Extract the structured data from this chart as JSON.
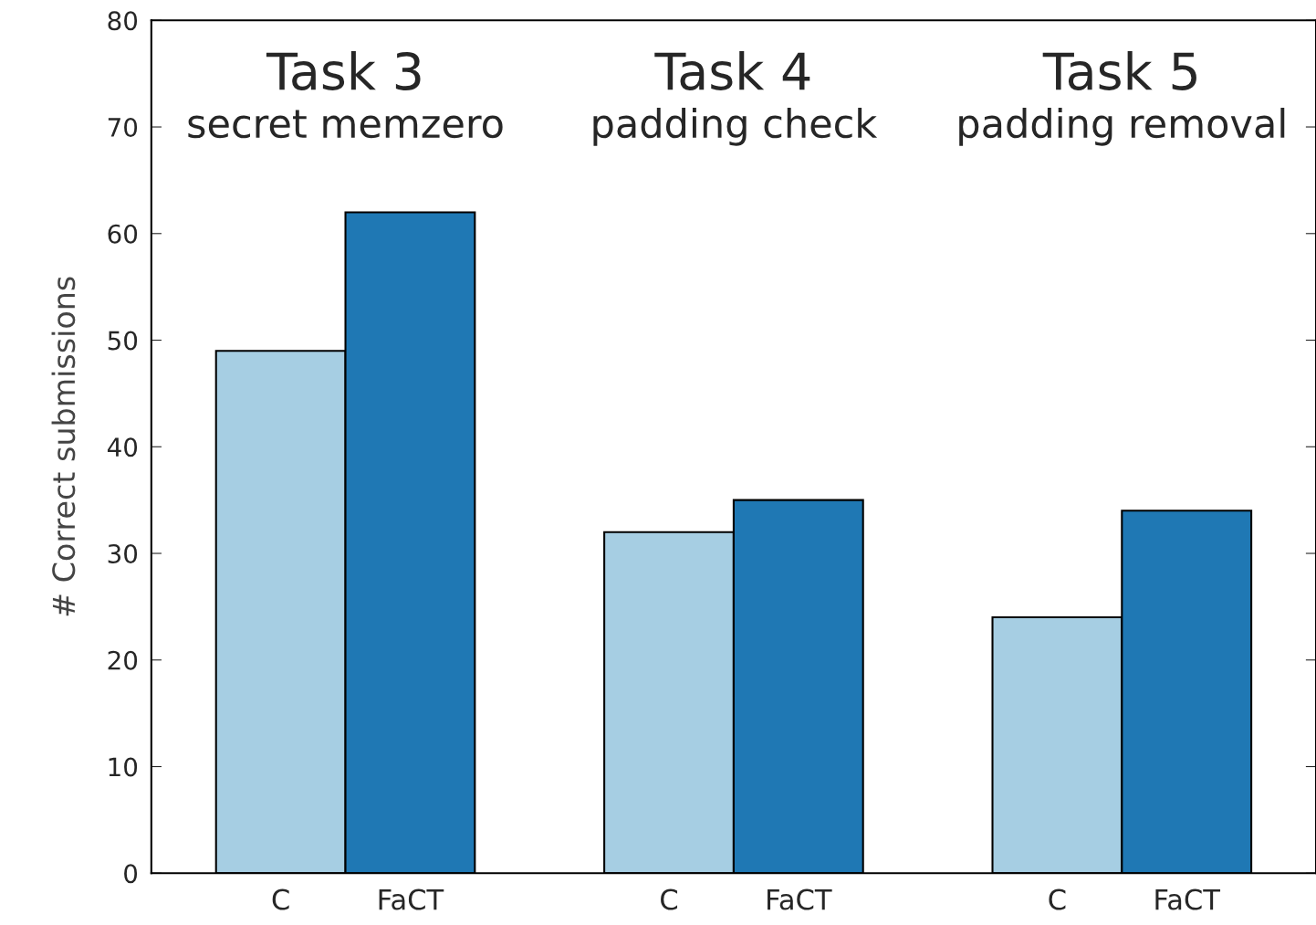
{
  "chart_data": {
    "type": "bar",
    "categories": [
      "C",
      "FaCT",
      null,
      "C",
      "FaCT",
      null,
      "C",
      "FaCT"
    ],
    "values": [
      49,
      62,
      null,
      32,
      35,
      null,
      24,
      34
    ],
    "colors": [
      "#a6cee3",
      "#1f78b4",
      null,
      "#a6cee3",
      "#1f78b4",
      null,
      "#a6cee3",
      "#1f78b4"
    ],
    "ylabel": "# Correct submissions",
    "ylim": [
      0,
      80
    ],
    "yticks": [
      0,
      10,
      20,
      30,
      40,
      50,
      60,
      70,
      80
    ],
    "annotations": [
      "Task 3",
      "secret memzero",
      "Task 4",
      "padding check",
      "Task 5",
      "padding removal"
    ],
    "grid": false,
    "legend": false
  }
}
